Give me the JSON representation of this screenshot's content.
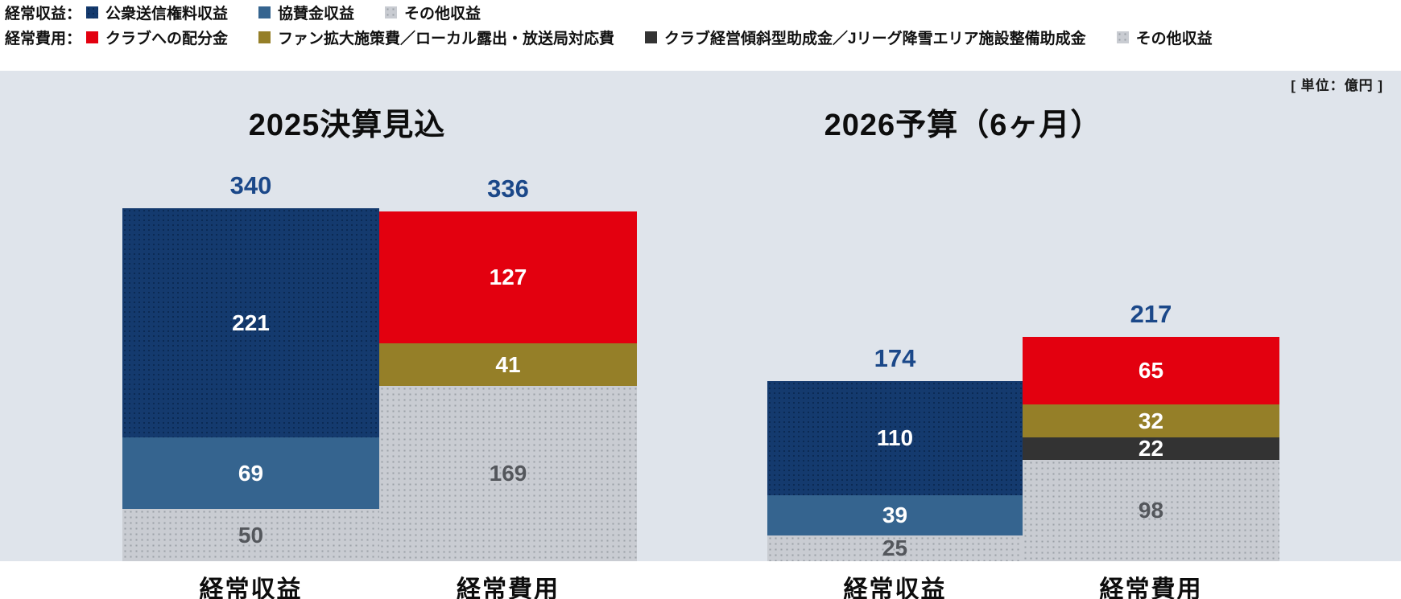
{
  "legend": {
    "rows": [
      {
        "label": "経常収益：",
        "items": [
          {
            "text": "公衆送信権料収益",
            "swatch": "navy-dots"
          },
          {
            "text": "協賛金収益",
            "swatch": "steel"
          },
          {
            "text": "その他収益",
            "swatch": "gray-dots"
          }
        ]
      },
      {
        "label": "経常費用：",
        "items": [
          {
            "text": "クラブへの配分金",
            "swatch": "red"
          },
          {
            "text": "ファン拡大施策費／ローカル露出・放送局対応費",
            "swatch": "olive"
          },
          {
            "text": "クラブ経営傾斜型助成金／Jリーグ降雪エリア施設整備助成金",
            "swatch": "black"
          },
          {
            "text": "その他収益",
            "swatch": "gray-dots"
          }
        ]
      }
    ]
  },
  "unit_label": "[ 単位：億円 ]",
  "colors": {
    "navy": "#143a6e",
    "steel": "#35648f",
    "gray": "#c9ccd2",
    "red": "#e3000f",
    "olive": "#957f28",
    "black": "#333333",
    "panel_background": "#dfe4eb",
    "total_label": "#1b4889"
  },
  "chart_data": {
    "type": "bar",
    "stacked": true,
    "unit": "億円",
    "legend_position": "top",
    "grid": false,
    "groups": [
      {
        "title": "2025決算見込",
        "bars": [
          {
            "category": "経常収益",
            "total": 340,
            "segments": [
              {
                "name": "公衆送信権料収益",
                "value": 221,
                "style": "navy-dots"
              },
              {
                "name": "協賛金収益",
                "value": 69,
                "style": "steel"
              },
              {
                "name": "その他収益",
                "value": 50,
                "style": "gray-dots"
              }
            ]
          },
          {
            "category": "経常費用",
            "total": 336,
            "segments": [
              {
                "name": "クラブへの配分金",
                "value": 127,
                "style": "red"
              },
              {
                "name": "ファン拡大施策費／ローカル露出・放送局対応費",
                "value": 41,
                "style": "olive"
              },
              {
                "name": "その他収益",
                "value": 169,
                "style": "gray-dots"
              }
            ]
          }
        ]
      },
      {
        "title": "2026予算（6ヶ月）",
        "bars": [
          {
            "category": "経常収益",
            "total": 174,
            "segments": [
              {
                "name": "公衆送信権料収益",
                "value": 110,
                "style": "navy-dots"
              },
              {
                "name": "協賛金収益",
                "value": 39,
                "style": "steel"
              },
              {
                "name": "その他収益",
                "value": 25,
                "style": "gray-dots"
              }
            ]
          },
          {
            "category": "経常費用",
            "total": 217,
            "segments": [
              {
                "name": "クラブへの配分金",
                "value": 65,
                "style": "red"
              },
              {
                "name": "ファン拡大施策費／ローカル露出・放送局対応費",
                "value": 32,
                "style": "olive"
              },
              {
                "name": "クラブ経営傾斜型助成金／Jリーグ降雪エリア施設整備助成金",
                "value": 22,
                "style": "black"
              },
              {
                "name": "その他収益",
                "value": 98,
                "style": "gray-dots"
              }
            ]
          }
        ]
      }
    ]
  }
}
